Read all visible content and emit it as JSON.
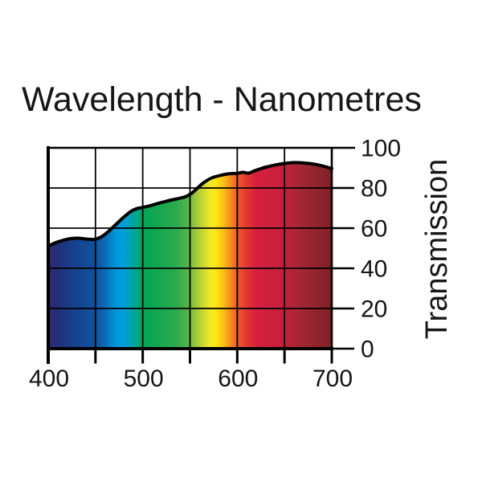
{
  "chart_data": {
    "type": "area",
    "title": "Wavelength - Nanometres",
    "ylabel": "Transmission",
    "xlabel": "",
    "xlim": [
      400,
      700
    ],
    "ylim": [
      0,
      100
    ],
    "grid": true,
    "legend": "none",
    "x_ticks": [
      400,
      450,
      500,
      550,
      600,
      650,
      700
    ],
    "x_tick_labels": [
      "400",
      "500",
      "600",
      "700"
    ],
    "y_ticks": [
      0,
      20,
      40,
      60,
      80,
      100
    ],
    "y_tick_labels": [
      "0",
      "20",
      "40",
      "60",
      "80",
      "100"
    ],
    "axis_color": "#000000",
    "curve_color": "#000000",
    "background": "#ffffff",
    "series": [
      {
        "name": "transmission-percent",
        "points": [
          [
            400,
            51.0
          ],
          [
            408,
            52.8
          ],
          [
            416,
            54.0
          ],
          [
            424,
            54.8
          ],
          [
            432,
            55.0
          ],
          [
            440,
            54.6
          ],
          [
            448,
            54.4
          ],
          [
            452,
            54.8
          ],
          [
            458,
            56.2
          ],
          [
            464,
            58.5
          ],
          [
            472,
            62.0
          ],
          [
            480,
            65.5
          ],
          [
            488,
            68.5
          ],
          [
            494,
            69.8
          ],
          [
            500,
            70.3
          ],
          [
            508,
            71.2
          ],
          [
            516,
            72.3
          ],
          [
            524,
            73.3
          ],
          [
            532,
            74.2
          ],
          [
            540,
            75.0
          ],
          [
            546,
            75.8
          ],
          [
            552,
            77.5
          ],
          [
            558,
            80.0
          ],
          [
            564,
            82.5
          ],
          [
            572,
            84.8
          ],
          [
            580,
            86.0
          ],
          [
            590,
            87.0
          ],
          [
            600,
            87.3
          ],
          [
            606,
            87.8
          ],
          [
            612,
            87.4
          ],
          [
            618,
            88.5
          ],
          [
            626,
            89.8
          ],
          [
            634,
            90.8
          ],
          [
            642,
            91.6
          ],
          [
            650,
            92.2
          ],
          [
            658,
            92.6
          ],
          [
            666,
            92.6
          ],
          [
            674,
            92.3
          ],
          [
            682,
            91.8
          ],
          [
            690,
            91.0
          ],
          [
            700,
            89.7
          ]
        ]
      }
    ],
    "spectrum_gradient": [
      {
        "pos": 0.0,
        "color": "#32296a"
      },
      {
        "pos": 0.033,
        "color": "#232f78"
      },
      {
        "pos": 0.083,
        "color": "#183f8b"
      },
      {
        "pos": 0.133,
        "color": "#124a97"
      },
      {
        "pos": 0.167,
        "color": "#10519f"
      },
      {
        "pos": 0.2,
        "color": "#0c6ab8"
      },
      {
        "pos": 0.235,
        "color": "#0092d6"
      },
      {
        "pos": 0.265,
        "color": "#009fdc"
      },
      {
        "pos": 0.3,
        "color": "#00a5a0"
      },
      {
        "pos": 0.33,
        "color": "#00a561"
      },
      {
        "pos": 0.36,
        "color": "#0ba64f"
      },
      {
        "pos": 0.45,
        "color": "#2baa4e"
      },
      {
        "pos": 0.49,
        "color": "#52b448"
      },
      {
        "pos": 0.52,
        "color": "#9ec73b"
      },
      {
        "pos": 0.573,
        "color": "#f6e926"
      },
      {
        "pos": 0.59,
        "color": "#ffe713"
      },
      {
        "pos": 0.617,
        "color": "#fcc115"
      },
      {
        "pos": 0.64,
        "color": "#f8941d"
      },
      {
        "pos": 0.667,
        "color": "#f05a2a"
      },
      {
        "pos": 0.707,
        "color": "#e23132"
      },
      {
        "pos": 0.733,
        "color": "#d6203e"
      },
      {
        "pos": 0.833,
        "color": "#c51f3d"
      },
      {
        "pos": 0.883,
        "color": "#a52836"
      },
      {
        "pos": 0.933,
        "color": "#94252f"
      },
      {
        "pos": 1.0,
        "color": "#7f2127"
      }
    ]
  }
}
